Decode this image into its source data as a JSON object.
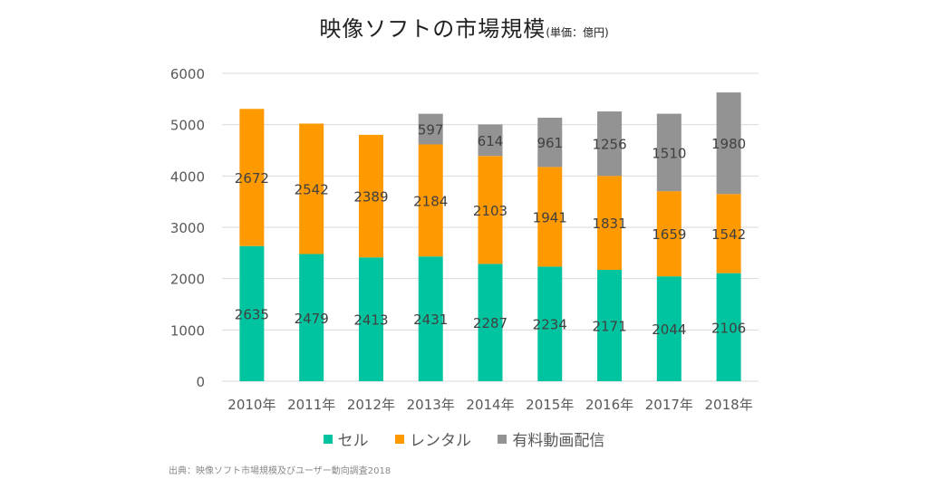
{
  "chart_data": {
    "type": "bar",
    "stacked": true,
    "title": "映像ソフトの市場規模",
    "subtitle": "(単価：億円)",
    "xlabel": "",
    "ylabel": "",
    "ylim": [
      0,
      6000
    ],
    "yticks": [
      0,
      1000,
      2000,
      3000,
      4000,
      5000,
      6000
    ],
    "grid": true,
    "legend_position": "bottom",
    "categories": [
      "2010年",
      "2011年",
      "2012年",
      "2013年",
      "2014年",
      "2015年",
      "2016年",
      "2017年",
      "2018年"
    ],
    "series": [
      {
        "name": "セル",
        "color": "#00c49f",
        "values": [
          2635,
          2479,
          2413,
          2431,
          2287,
          2234,
          2171,
          2044,
          2106
        ]
      },
      {
        "name": "レンタル",
        "color": "#ff9900",
        "values": [
          2672,
          2542,
          2389,
          2184,
          2103,
          1941,
          1831,
          1659,
          1542
        ]
      },
      {
        "name": "有料動画配信",
        "color": "#939393",
        "values": [
          null,
          null,
          null,
          597,
          614,
          961,
          1256,
          1510,
          1980
        ]
      }
    ],
    "source": "出典：映像ソフト市場規模及びユーザー動向調査2018"
  }
}
